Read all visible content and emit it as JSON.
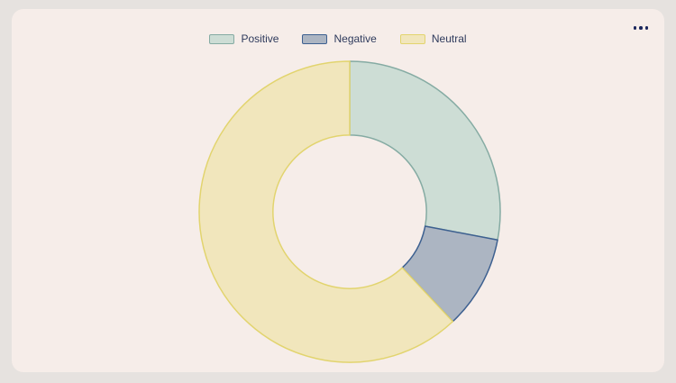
{
  "card": {
    "menu_icon": "more-options-ellipsis"
  },
  "colors": {
    "page_background": "#e6e2df",
    "card_background": "#f6ede9",
    "legend_text": "#2e3a5c",
    "menu_dots": "#1a265c"
  },
  "chart_data": {
    "type": "pie",
    "subtype": "donut",
    "title": "",
    "categories": [
      "Positive",
      "Negative",
      "Neutral"
    ],
    "values": [
      28,
      10,
      62
    ],
    "unit": "percent (estimated from arc angles)",
    "start_angle_deg": 0,
    "direction": "clockwise",
    "inner_radius_ratio": 0.51,
    "legend_position": "top",
    "colors": [
      "#cdddd5",
      "#acb5c2",
      "#f1e6bc"
    ],
    "border_colors": [
      "#85aba3",
      "#3d6090",
      "#e2d46e"
    ]
  }
}
